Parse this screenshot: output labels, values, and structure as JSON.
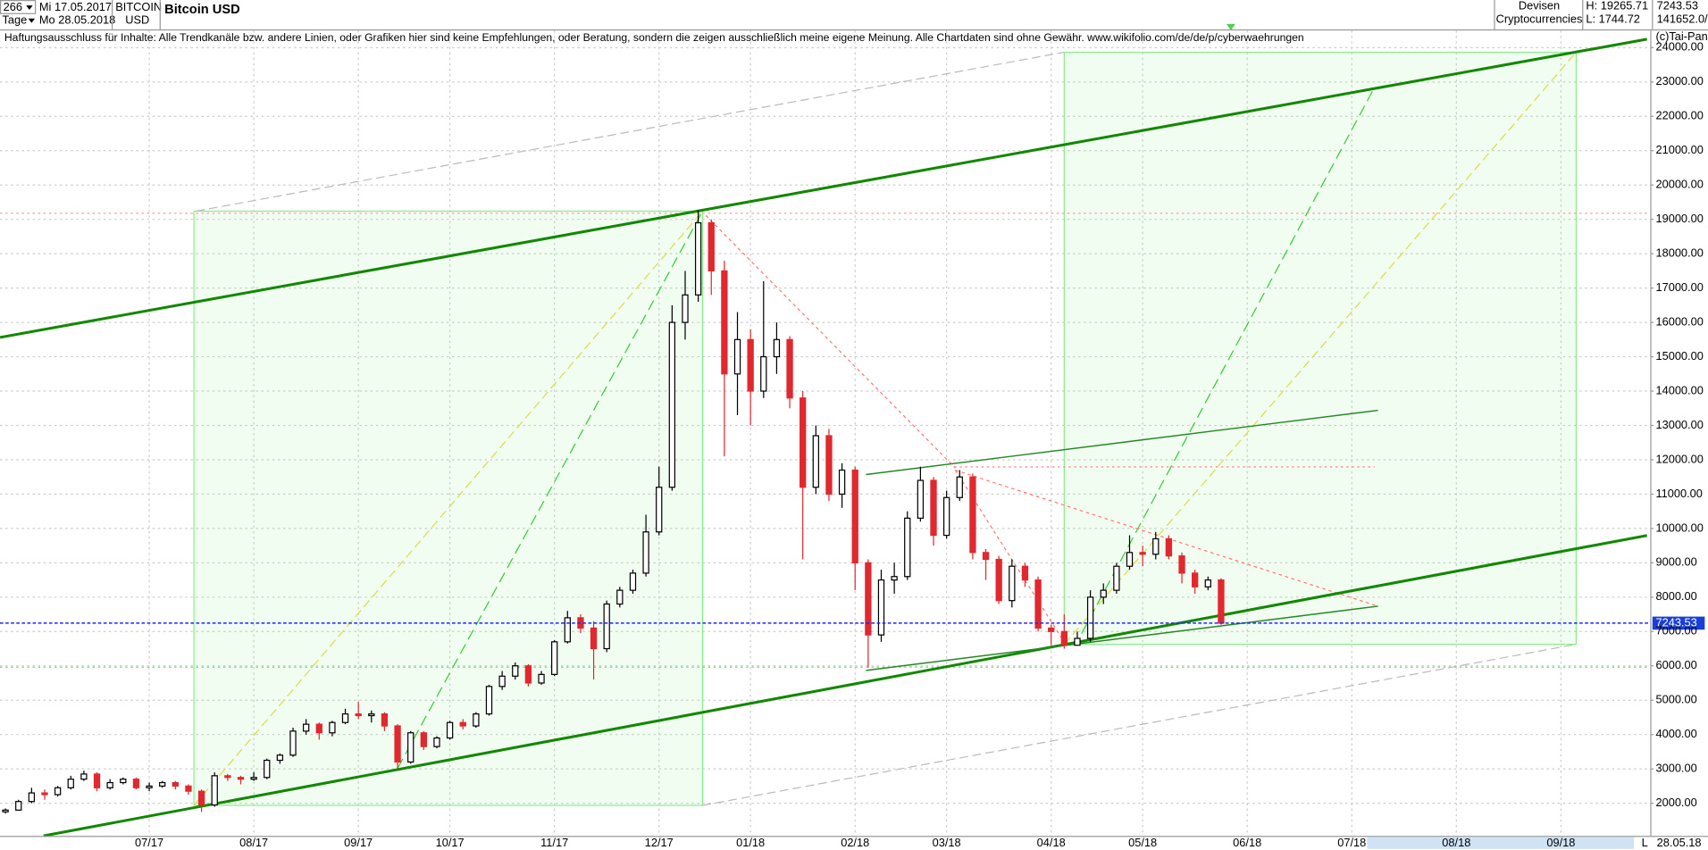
{
  "header": {
    "bars": "266",
    "interval": "Tage",
    "start": "Mi 17.05.2017",
    "end": "Mo 28.05.2018",
    "symbol": "BITCOIN",
    "currency": "USD",
    "group": "Devisen",
    "subgroup": "Cryptocurrencies",
    "high": "H: 19265.71",
    "low": "L: 1744.72",
    "volume": "141652.0/",
    "copyright": "(c)Tai-Pan",
    "axis_date": "28.05.18",
    "axis_mode": "L"
  },
  "chart_data": {
    "type": "candlestick",
    "title": "Bitcoin USD",
    "annotation": "Haftungsausschluss für Inhalte: Alle Trendkanäle bzw. andere Linien, oder Grafiken hier sind keine Empfehlungen, oder Beratung, sondern die zeigen ausschließlich meine eigene Meinung. Alle Chartdaten sind ohne Gewähr.  www.wikifolio.com/de/de/p/cyberwaehrungen",
    "categories": [
      null,
      null,
      null,
      null,
      null,
      null,
      null,
      null,
      null,
      null,
      null,
      "07/17",
      null,
      null,
      null,
      null,
      null,
      null,
      null,
      "08/17",
      null,
      null,
      null,
      null,
      null,
      null,
      null,
      "09/17",
      null,
      null,
      null,
      null,
      null,
      null,
      "10/17",
      null,
      null,
      null,
      null,
      null,
      null,
      null,
      "11/17",
      null,
      null,
      null,
      null,
      null,
      null,
      null,
      "12/17",
      null,
      null,
      null,
      null,
      null,
      null,
      "01/18",
      null,
      null,
      null,
      null,
      null,
      null,
      null,
      "02/18",
      null,
      null,
      null,
      null,
      null,
      null,
      "03/18",
      null,
      null,
      null,
      null,
      null,
      null,
      null,
      "04/18",
      null,
      null,
      null,
      null,
      null,
      null,
      "05/18",
      null,
      null,
      null,
      null,
      null,
      null,
      null,
      "06/18",
      null,
      null,
      null,
      null,
      null,
      null,
      null,
      "07/18",
      null,
      null,
      null,
      null,
      null,
      null,
      null,
      "08/18",
      null,
      null,
      null,
      null,
      null,
      null,
      null,
      "09/18",
      null,
      null,
      null,
      null,
      null,
      null
    ],
    "open": [
      1750,
      1800,
      2050,
      2300,
      2250,
      2450,
      2700,
      2850,
      2450,
      2600,
      2700,
      2450,
      2500,
      2600,
      2500,
      2350,
      1950,
      2800,
      2750,
      2700,
      2750,
      3250,
      3400,
      4100,
      4300,
      4050,
      4350,
      4600,
      4550,
      4600,
      4250,
      3200,
      4050,
      3650,
      3900,
      4350,
      4250,
      4600,
      5400,
      5700,
      6000,
      5500,
      5750,
      6700,
      7400,
      7100,
      6500,
      7800,
      8200,
      8700,
      9900,
      11200,
      16000,
      16800,
      18900,
      17500,
      14500,
      15500,
      14000,
      15000,
      15500,
      13800,
      11200,
      12700,
      11000,
      11700,
      9000,
      6900,
      8500,
      8600,
      10300,
      11400,
      9800,
      10900,
      11500,
      9300,
      9100,
      7900,
      8900,
      8500,
      7100,
      7000,
      6600,
      6800,
      8000,
      8200,
      8900,
      9300,
      9250,
      9700,
      9200,
      8700,
      8300,
      8500,
      null,
      null,
      null,
      null,
      null,
      null,
      null,
      null,
      null,
      null,
      null,
      null,
      null,
      null,
      null,
      null,
      null,
      null,
      null,
      null,
      null,
      null,
      null,
      null,
      null,
      null,
      null,
      null,
      null,
      null,
      null,
      null
    ],
    "high": [
      1850,
      2100,
      2450,
      2400,
      2500,
      2800,
      2950,
      2900,
      2700,
      2750,
      2750,
      2600,
      2650,
      2650,
      2550,
      2400,
      2900,
      2850,
      2800,
      2900,
      3300,
      3450,
      4200,
      4450,
      4350,
      4400,
      4750,
      4950,
      4700,
      4650,
      4300,
      4100,
      4100,
      3950,
      4400,
      4450,
      4650,
      5450,
      5850,
      6100,
      6050,
      5850,
      6750,
      7600,
      7500,
      7300,
      7900,
      8300,
      8800,
      10400,
      11800,
      16500,
      17500,
      19265.71,
      19000,
      17800,
      16300,
      15800,
      17200,
      16000,
      15600,
      14000,
      13000,
      12900,
      11900,
      11800,
      9100,
      8800,
      9000,
      10500,
      11800,
      11500,
      11100,
      11700,
      11600,
      9400,
      9200,
      9100,
      9000,
      8600,
      7200,
      7500,
      7000,
      8200,
      8400,
      9000,
      9800,
      9500,
      9900,
      9800,
      9300,
      8800,
      8600,
      8550,
      null,
      null,
      null,
      null,
      null,
      null,
      null,
      null,
      null,
      null,
      null,
      null,
      null,
      null,
      null,
      null,
      null,
      null,
      null,
      null,
      null,
      null,
      null,
      null,
      null,
      null,
      null,
      null,
      null,
      null,
      null,
      null
    ],
    "low": [
      1700,
      1780,
      2000,
      2100,
      2200,
      2400,
      2650,
      2350,
      2400,
      2550,
      2400,
      2350,
      2450,
      2400,
      2250,
      1744.72,
      1900,
      2650,
      2550,
      2650,
      2700,
      3150,
      3350,
      4000,
      3850,
      3950,
      4300,
      4450,
      4350,
      4100,
      3000,
      3150,
      3550,
      3600,
      3850,
      4150,
      4200,
      4550,
      5300,
      5600,
      5400,
      5450,
      5700,
      6650,
      6950,
      5600,
      6400,
      7700,
      8100,
      8600,
      9800,
      11100,
      15500,
      16600,
      16800,
      12100,
      13300,
      13000,
      13800,
      14500,
      13500,
      9100,
      11000,
      10800,
      10600,
      8200,
      5950,
      6700,
      8100,
      8500,
      10200,
      9500,
      9700,
      10800,
      9100,
      8500,
      7800,
      7700,
      8300,
      7000,
      6600,
      6500,
      6600,
      6700,
      7800,
      8100,
      8800,
      8900,
      9100,
      9100,
      8400,
      8100,
      8200,
      7200,
      null,
      null,
      null,
      null,
      null,
      null,
      null,
      null,
      null,
      null,
      null,
      null,
      null,
      null,
      null,
      null,
      null,
      null,
      null,
      null,
      null,
      null,
      null,
      null,
      null,
      null,
      null,
      null,
      null,
      null,
      null,
      null
    ],
    "close": [
      1800,
      2050,
      2300,
      2250,
      2450,
      2700,
      2850,
      2450,
      2600,
      2700,
      2450,
      2500,
      2600,
      2500,
      2350,
      1950,
      2800,
      2750,
      2700,
      2750,
      3250,
      3400,
      4100,
      4300,
      4050,
      4350,
      4600,
      4550,
      4600,
      4250,
      3200,
      4050,
      3650,
      3900,
      4350,
      4250,
      4600,
      5400,
      5700,
      6000,
      5500,
      5750,
      6700,
      7400,
      7100,
      6500,
      7800,
      8200,
      8700,
      9900,
      11200,
      16000,
      16800,
      18900,
      17500,
      14500,
      15500,
      14000,
      15000,
      15500,
      13800,
      11200,
      12700,
      11000,
      11700,
      9000,
      6900,
      8500,
      8600,
      10300,
      11400,
      9800,
      10900,
      11500,
      9300,
      9100,
      7900,
      8900,
      8500,
      7100,
      7000,
      6600,
      6800,
      8000,
      8200,
      8900,
      9300,
      9250,
      9700,
      9200,
      8700,
      8300,
      8500,
      7243.53,
      null,
      null,
      null,
      null,
      null,
      null,
      null,
      null,
      null,
      null,
      null,
      null,
      null,
      null,
      null,
      null,
      null,
      null,
      null,
      null,
      null,
      null,
      null,
      null,
      null,
      null,
      null,
      null,
      null,
      null,
      null,
      null
    ],
    "up_color": "#000000",
    "down_color": "#e0282f",
    "last_price": 7243.53,
    "ylim": [
      1050,
      24500
    ],
    "yticks": [
      {
        "value": 2000,
        "label": "2000.00"
      },
      {
        "value": 3000,
        "label": "3000.00"
      },
      {
        "value": 4000,
        "label": "4000.00"
      },
      {
        "value": 5000,
        "label": "5000.00"
      },
      {
        "value": 6000,
        "label": "6000.00"
      },
      {
        "value": 7000,
        "label": "7000.00"
      },
      {
        "value": 8000,
        "label": "8000.00"
      },
      {
        "value": 9000,
        "label": "9000.00"
      },
      {
        "value": 10000,
        "label": "10000.00"
      },
      {
        "value": 11000,
        "label": "11000.00"
      },
      {
        "value": 12000,
        "label": "12000.00"
      },
      {
        "value": 13000,
        "label": "13000.00"
      },
      {
        "value": 14000,
        "label": "14000.00"
      },
      {
        "value": 15000,
        "label": "15000.00"
      },
      {
        "value": 16000,
        "label": "16000.00"
      },
      {
        "value": 17000,
        "label": "17000.00"
      },
      {
        "value": 18000,
        "label": "18000.00"
      },
      {
        "value": 19000,
        "label": "19000.00"
      },
      {
        "value": 20000,
        "label": "20000.00"
      },
      {
        "value": 21000,
        "label": "21000.00"
      },
      {
        "value": 22000,
        "label": "22000.00"
      },
      {
        "value": 23000,
        "label": "23000.00"
      },
      {
        "value": 24000,
        "label": "24000.00"
      }
    ],
    "grid": true
  }
}
